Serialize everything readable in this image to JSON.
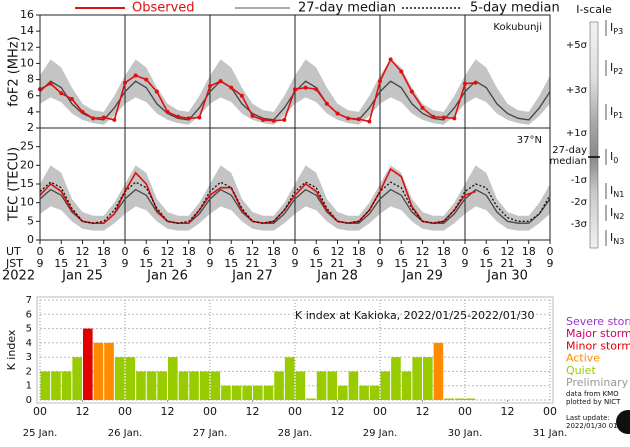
{
  "chart_data": [
    {
      "type": "line",
      "ylabel": "foF2 (MHz)",
      "annotation": "Kokubunji",
      "xlim": [
        0,
        144
      ],
      "ylim": [
        2,
        16
      ],
      "yticks": [
        2,
        4,
        6,
        8,
        10,
        12,
        14,
        16
      ],
      "x": [
        0,
        3,
        6,
        9,
        12,
        15,
        18,
        21,
        24,
        27,
        30,
        33,
        36,
        39,
        42,
        45,
        48,
        51,
        54,
        57,
        60,
        63,
        66,
        69,
        72,
        75,
        78,
        81,
        84,
        87,
        90,
        93,
        96,
        99,
        102,
        105,
        108,
        111,
        114,
        117,
        120,
        123,
        126,
        129,
        132,
        135,
        138,
        141,
        144
      ],
      "band_color": "#c4c4c4",
      "band_lo": [
        5.0,
        5.8,
        5.2,
        3.8,
        3.0,
        2.6,
        2.4,
        3.5,
        5.0,
        5.8,
        5.2,
        3.8,
        3.0,
        2.6,
        2.4,
        3.5,
        5.0,
        5.8,
        5.2,
        3.8,
        3.0,
        2.6,
        2.4,
        3.5,
        5.0,
        5.8,
        5.2,
        3.8,
        3.0,
        2.6,
        2.4,
        3.5,
        5.0,
        5.8,
        5.2,
        3.8,
        3.0,
        2.6,
        2.4,
        3.5,
        5.0,
        5.8,
        5.2,
        3.8,
        3.0,
        2.6,
        2.4,
        3.5,
        5.0
      ],
      "band_hi": [
        8.5,
        10.5,
        9.5,
        7.0,
        5.0,
        4.2,
        4.0,
        6.0,
        8.5,
        10.5,
        9.5,
        7.0,
        5.0,
        4.2,
        4.0,
        6.0,
        8.5,
        10.5,
        9.5,
        7.0,
        5.0,
        4.2,
        4.0,
        6.0,
        8.5,
        10.5,
        9.5,
        7.0,
        5.0,
        4.2,
        4.0,
        6.0,
        8.5,
        10.5,
        9.5,
        7.0,
        5.0,
        4.2,
        4.0,
        6.0,
        8.5,
        10.5,
        9.5,
        7.0,
        5.0,
        4.2,
        4.0,
        6.0,
        8.5
      ],
      "series": [
        {
          "name": "27-day median",
          "color": "#444444",
          "dash": false,
          "values": [
            6.5,
            7.8,
            7.0,
            5.0,
            3.8,
            3.2,
            3.0,
            4.5,
            6.5,
            7.8,
            7.0,
            5.0,
            3.8,
            3.2,
            3.0,
            4.5,
            6.5,
            7.8,
            7.0,
            5.0,
            3.8,
            3.2,
            3.0,
            4.5,
            6.5,
            7.8,
            7.0,
            5.0,
            3.8,
            3.2,
            3.0,
            4.5,
            6.5,
            7.8,
            7.0,
            5.0,
            3.8,
            3.2,
            3.0,
            4.5,
            6.5,
            7.8,
            7.0,
            5.0,
            3.8,
            3.2,
            3.0,
            4.5,
            6.5
          ]
        },
        {
          "name": "Observed",
          "color": "#e01010",
          "dash": false,
          "dots": true,
          "values": [
            6.8,
            7.5,
            6.3,
            5.6,
            4.0,
            3.2,
            3.3,
            3.0,
            7.6,
            8.5,
            8.0,
            6.5,
            4.0,
            3.4,
            3.2,
            3.3,
            7.2,
            7.8,
            7.0,
            6.0,
            3.5,
            3.0,
            2.9,
            3.0,
            6.8,
            7.0,
            6.8,
            5.0,
            3.8,
            3.2,
            3.1,
            2.8,
            7.8,
            10.5,
            9.0,
            6.5,
            4.5,
            3.4,
            3.3,
            3.2,
            7.5,
            7.6,
            null,
            null,
            null,
            null,
            null,
            null,
            null
          ]
        }
      ]
    },
    {
      "type": "line",
      "ylabel": "TEC (TECU)",
      "annotation": "37°N",
      "xlim": [
        0,
        144
      ],
      "ylim": [
        0,
        30
      ],
      "yticks": [
        0,
        5,
        10,
        15,
        20,
        25
      ],
      "x": [
        0,
        3,
        6,
        9,
        12,
        15,
        18,
        21,
        24,
        27,
        30,
        33,
        36,
        39,
        42,
        45,
        48,
        51,
        54,
        57,
        60,
        63,
        66,
        69,
        72,
        75,
        78,
        81,
        84,
        87,
        90,
        93,
        96,
        99,
        102,
        105,
        108,
        111,
        114,
        117,
        120,
        123,
        126,
        129,
        132,
        135,
        138,
        141,
        144
      ],
      "xticks": [
        0,
        6,
        12,
        18,
        {
          "value": 24,
          "label": "0"
        },
        {
          "value": 30,
          "label": "6"
        },
        {
          "value": 36,
          "label": "12"
        },
        {
          "value": 42,
          "label": "18"
        },
        {
          "value": 48,
          "label": "0"
        },
        {
          "value": 54,
          "label": "6"
        },
        {
          "value": 60,
          "label": "12"
        },
        {
          "value": 66,
          "label": "18"
        },
        {
          "value": 72,
          "label": "0"
        },
        {
          "value": 78,
          "label": "6"
        },
        {
          "value": 84,
          "label": "12"
        },
        {
          "value": 90,
          "label": "18"
        },
        {
          "value": 96,
          "label": "0"
        },
        {
          "value": 102,
          "label": "6"
        },
        {
          "value": 108,
          "label": "12"
        },
        {
          "value": 114,
          "label": "18"
        },
        {
          "value": 120,
          "label": "0"
        },
        {
          "value": 126,
          "label": "6"
        },
        {
          "value": 132,
          "label": "12"
        },
        {
          "value": 138,
          "label": "18"
        },
        {
          "value": 144,
          "label": "0"
        }
      ],
      "jst_labels": [
        "9",
        "15",
        "21",
        "3",
        "9",
        "15",
        "21",
        "3",
        "9",
        "15",
        "21",
        "3",
        "9",
        "15",
        "21",
        "3",
        "9",
        "15",
        "21",
        "3",
        "9",
        "15",
        "21",
        "3",
        "9"
      ],
      "ut_label": "UT",
      "jst_label": "JST",
      "year": "2022",
      "day_labels": [
        "Jan 25",
        "Jan 26",
        "Jan 27",
        "Jan 28",
        "Jan 29",
        "Jan 30"
      ],
      "band_color": "#c4c4c4",
      "band_lo": [
        7,
        9,
        8,
        5,
        3,
        2.5,
        2.5,
        4.5,
        7,
        9,
        8,
        5,
        3,
        2.5,
        2.5,
        4.5,
        7,
        9,
        8,
        5,
        3,
        2.5,
        2.5,
        4.5,
        7,
        9,
        8,
        5,
        3,
        2.5,
        2.5,
        4.5,
        7,
        9,
        8,
        5,
        3,
        2.5,
        2.5,
        4.5,
        7,
        9,
        8,
        5,
        3,
        2.5,
        2.5,
        4.5,
        7
      ],
      "band_hi": [
        15,
        20,
        18,
        11,
        7.5,
        6.5,
        6.5,
        10,
        15,
        20,
        18,
        11,
        7.5,
        6.5,
        6.5,
        10,
        15,
        20,
        18,
        11,
        7.5,
        6.5,
        6.5,
        10,
        15,
        20,
        18,
        11,
        7.5,
        6.5,
        6.5,
        10,
        15,
        20,
        18,
        11,
        7.5,
        6.5,
        6.5,
        10,
        15,
        20,
        18,
        11,
        7.5,
        6.5,
        6.5,
        10,
        15
      ],
      "series": [
        {
          "name": "27-day median",
          "color": "#444444",
          "dash": false,
          "values": [
            11,
            13.5,
            12,
            7.5,
            5,
            4.5,
            4.5,
            7,
            11,
            13.5,
            12,
            7.5,
            5,
            4.5,
            4.5,
            7,
            11,
            13.5,
            12,
            7.5,
            5,
            4.5,
            4.5,
            7,
            11,
            13.5,
            12,
            7.5,
            5,
            4.5,
            4.5,
            7,
            11,
            13.5,
            12,
            7.5,
            5,
            4.5,
            4.5,
            7,
            11,
            13.5,
            12,
            7.5,
            5,
            4.5,
            4.5,
            7,
            11
          ]
        },
        {
          "name": "Observed",
          "color": "#e01010",
          "dash": false,
          "values": [
            12,
            15,
            13,
            8,
            5,
            4.5,
            4.5,
            7,
            13,
            18,
            15,
            8,
            5,
            4.5,
            4.5,
            8,
            12,
            14,
            14,
            8,
            5,
            4.5,
            5,
            8,
            12,
            15,
            13,
            8,
            5,
            4.5,
            5,
            8,
            13,
            19,
            17,
            9,
            5,
            4.5,
            5,
            8,
            12,
            13,
            null,
            null,
            null,
            null,
            null,
            null,
            null
          ]
        },
        {
          "name": "5-day median",
          "color": "#111111",
          "dash": true,
          "values": [
            13,
            15.5,
            14,
            8.5,
            5,
            4.5,
            5,
            8,
            13,
            15.5,
            14,
            8.5,
            5,
            4.5,
            5,
            8,
            13,
            15.5,
            14,
            8.5,
            5,
            4.5,
            5,
            8,
            13,
            15.5,
            14,
            8.5,
            5,
            4.5,
            5,
            8,
            13,
            15.5,
            14,
            8.5,
            5,
            4.5,
            5,
            8,
            13,
            15,
            14,
            9,
            6,
            5,
            5,
            7,
            12
          ]
        }
      ]
    },
    {
      "type": "bar",
      "title": "K index at Kakioka, 2022/01/25-2022/01/30",
      "ylabel": "K index",
      "xlim": [
        0,
        144
      ],
      "ylim": [
        0,
        7
      ],
      "yticks": [
        0,
        1,
        2,
        3,
        4,
        5,
        6,
        7
      ],
      "grid": true,
      "bin_width": 3,
      "x": [
        0,
        3,
        6,
        9,
        12,
        15,
        18,
        21,
        24,
        27,
        30,
        33,
        36,
        39,
        42,
        45,
        48,
        51,
        54,
        57,
        60,
        63,
        66,
        69,
        72,
        75,
        78,
        81,
        84,
        87,
        90,
        93,
        96,
        99,
        102,
        105,
        108,
        111,
        114,
        117,
        120,
        123,
        126,
        129,
        132,
        135,
        138,
        141
      ],
      "values": [
        2,
        2,
        2,
        3,
        5,
        4,
        4,
        3,
        3,
        2,
        2,
        2,
        3,
        2,
        2,
        2,
        2,
        1,
        1,
        1,
        1,
        1,
        2,
        3,
        2,
        0,
        2,
        2,
        1,
        2,
        1,
        1,
        2,
        3,
        2,
        3,
        3,
        4,
        0,
        0,
        0,
        null,
        null,
        null,
        null,
        null,
        null,
        null
      ],
      "colors": [
        "#99cc00",
        "#99cc00",
        "#99cc00",
        "#99cc00",
        "#e00000",
        "#ff8c00",
        "#ff8c00",
        "#99cc00",
        "#99cc00",
        "#99cc00",
        "#99cc00",
        "#99cc00",
        "#99cc00",
        "#99cc00",
        "#99cc00",
        "#99cc00",
        "#99cc00",
        "#99cc00",
        "#99cc00",
        "#99cc00",
        "#99cc00",
        "#99cc00",
        "#99cc00",
        "#99cc00",
        "#99cc00",
        "#99cc00",
        "#99cc00",
        "#99cc00",
        "#99cc00",
        "#99cc00",
        "#99cc00",
        "#99cc00",
        "#99cc00",
        "#99cc00",
        "#99cc00",
        "#99cc00",
        "#99cc00",
        "#ff8c00",
        "#99cc00",
        "#99cc00",
        "#99cc00",
        null,
        null,
        null,
        null,
        null,
        null,
        null
      ],
      "xticks": [
        {
          "value": 0,
          "label": "00"
        },
        {
          "value": 12,
          "label": "12"
        },
        {
          "value": 24,
          "label": "00"
        },
        {
          "value": 36,
          "label": "12"
        },
        {
          "value": 48,
          "label": "00"
        },
        {
          "value": 60,
          "label": "12"
        },
        {
          "value": 72,
          "label": "00"
        },
        {
          "value": 84,
          "label": "12"
        },
        {
          "value": 96,
          "label": "00"
        },
        {
          "value": 108,
          "label": "12"
        },
        {
          "value": 120,
          "label": "00"
        },
        {
          "value": 132,
          "label": "12"
        },
        {
          "value": 144,
          "label": "00"
        }
      ],
      "day_labels": [
        "25 Jan.",
        "26 Jan.",
        "27 Jan.",
        "28 Jan.",
        "29 Jan.",
        "30 Jan.",
        "31 Jan."
      ],
      "legend": [
        {
          "name": "Severe storm",
          "color": "#9933cc"
        },
        {
          "name": "Major storm",
          "color": "#cc0066"
        },
        {
          "name": "Minor storm",
          "color": "#e00000"
        },
        {
          "name": "Active",
          "color": "#ff8c00"
        },
        {
          "name": "Quiet",
          "color": "#99cc00"
        },
        {
          "name": "Preliminary",
          "color": "#999999"
        }
      ],
      "notes": [
        "data from KMO",
        "plotted by NICT"
      ],
      "update_label": "Last update:",
      "update_time": "2022/01/30 01"
    }
  ],
  "i_scale": {
    "title": "I-scale",
    "left": [
      "+5σ",
      "+3σ",
      "+1σ",
      "27-day",
      "median",
      "-1σ",
      "-2σ",
      "-3σ"
    ],
    "right": [
      {
        "main": "I",
        "sub": "P3"
      },
      {
        "main": "I",
        "sub": "P2"
      },
      {
        "main": "I",
        "sub": "P1"
      },
      {
        "main": "I",
        "sub": "0"
      },
      {
        "main": "I",
        "sub": "N1"
      },
      {
        "main": "I",
        "sub": "N2"
      },
      {
        "main": "I",
        "sub": "N3"
      }
    ]
  }
}
